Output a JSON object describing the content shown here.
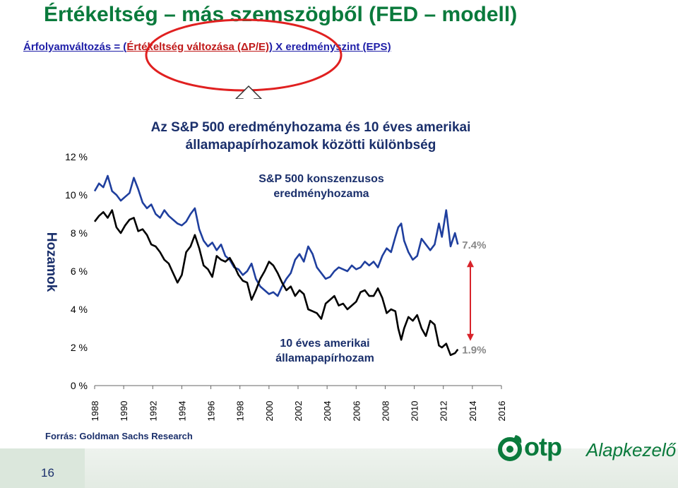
{
  "slide": {
    "title": "Értékeltség – más szemszögből (FED – modell)",
    "formula": {
      "part1": "Árfolyamváltozás = (",
      "part2": "Értékeltség változása (ΔP/E)",
      "part3": ") X  eredményszint (EPS)"
    },
    "source": "Forrás: Goldman Sachs Research",
    "page_number": "16",
    "logo": {
      "name": "otp",
      "sub": "Alapkezelő"
    }
  },
  "chart_data": {
    "type": "line",
    "title": "Az S&P 500 eredményhozama és 10 éves amerikai államapapírhozamok közötti különbség",
    "title_lines": [
      "Az S&P 500 eredményhozama és 10 éves amerikai",
      "államapapírhozamok  közötti különbség"
    ],
    "ylabel": "Hozamok",
    "ylim": [
      0,
      12
    ],
    "yticks": [
      "0 %",
      "2 %",
      "4 %",
      "6 %",
      "8 %",
      "10 %",
      "12 %"
    ],
    "yticks_values": [
      0,
      2,
      4,
      6,
      8,
      10,
      12
    ],
    "xlim": [
      1988,
      2016
    ],
    "xticks": [
      "1988",
      "1990",
      "1992",
      "1994",
      "1996",
      "1998",
      "2000",
      "2002",
      "2004",
      "2006",
      "2008",
      "2010",
      "2012",
      "2014",
      "2016"
    ],
    "grid": false,
    "series": [
      {
        "name": "S&P 500 konszenzusos eredményhozama",
        "name_lines": [
          "S&P 500 konszenzusos",
          "eredményhozama"
        ],
        "color": "#1f3f9e",
        "end_label": "7.4%",
        "x": [
          1988.0,
          1988.3,
          1988.6,
          1988.9,
          1989.2,
          1989.5,
          1989.8,
          1990.1,
          1990.4,
          1990.7,
          1991.0,
          1991.3,
          1991.6,
          1991.9,
          1992.2,
          1992.5,
          1992.8,
          1993.1,
          1993.4,
          1993.7,
          1994.0,
          1994.3,
          1994.6,
          1994.9,
          1995.2,
          1995.5,
          1995.8,
          1996.1,
          1996.4,
          1996.7,
          1997.0,
          1997.3,
          1997.6,
          1997.9,
          1998.2,
          1998.5,
          1998.8,
          1999.1,
          1999.4,
          1999.7,
          2000.0,
          2000.3,
          2000.6,
          2000.9,
          2001.2,
          2001.5,
          2001.8,
          2002.1,
          2002.4,
          2002.7,
          2003.0,
          2003.3,
          2003.6,
          2003.9,
          2004.2,
          2004.5,
          2004.8,
          2005.1,
          2005.4,
          2005.7,
          2006.0,
          2006.3,
          2006.6,
          2006.9,
          2007.2,
          2007.5,
          2007.8,
          2008.1,
          2008.4,
          2008.7,
          2008.9,
          2009.1,
          2009.3,
          2009.6,
          2009.9,
          2010.2,
          2010.5,
          2010.8,
          2011.1,
          2011.4,
          2011.7,
          2011.9,
          2012.2,
          2012.5,
          2012.8,
          2013.0
        ],
        "y": [
          10.2,
          10.6,
          10.4,
          11.0,
          10.2,
          10.0,
          9.7,
          9.9,
          10.1,
          10.9,
          10.3,
          9.6,
          9.3,
          9.5,
          9.0,
          8.8,
          9.2,
          8.9,
          8.7,
          8.5,
          8.4,
          8.6,
          9.0,
          9.3,
          8.2,
          7.6,
          7.3,
          7.5,
          7.1,
          7.4,
          6.8,
          6.6,
          6.2,
          6.1,
          5.8,
          6.0,
          6.4,
          5.6,
          5.2,
          5.0,
          4.8,
          4.9,
          4.7,
          5.2,
          5.6,
          5.9,
          6.6,
          6.9,
          6.5,
          7.3,
          6.9,
          6.2,
          5.9,
          5.6,
          5.7,
          6.0,
          6.2,
          6.1,
          6.0,
          6.3,
          6.1,
          6.2,
          6.5,
          6.3,
          6.5,
          6.2,
          6.8,
          7.2,
          7.0,
          7.8,
          8.3,
          8.5,
          7.6,
          7.0,
          6.6,
          6.8,
          7.7,
          7.4,
          7.1,
          7.4,
          8.5,
          7.8,
          9.2,
          7.3,
          8.0,
          7.4
        ]
      },
      {
        "name": "10 éves amerikai államapapírhozam",
        "name_lines": [
          "10 éves amerikai",
          "államapapírhozam"
        ],
        "color": "#000000",
        "end_label": "1.9%",
        "x": [
          1988.0,
          1988.3,
          1988.6,
          1988.9,
          1989.2,
          1989.5,
          1989.8,
          1990.1,
          1990.4,
          1990.7,
          1991.0,
          1991.3,
          1991.6,
          1991.9,
          1992.2,
          1992.5,
          1992.8,
          1993.1,
          1993.4,
          1993.7,
          1994.0,
          1994.3,
          1994.6,
          1994.9,
          1995.2,
          1995.5,
          1995.8,
          1996.1,
          1996.4,
          1996.7,
          1997.0,
          1997.3,
          1997.6,
          1997.9,
          1998.2,
          1998.5,
          1998.8,
          1999.1,
          1999.4,
          1999.7,
          2000.0,
          2000.3,
          2000.6,
          2000.9,
          2001.2,
          2001.5,
          2001.8,
          2002.1,
          2002.4,
          2002.7,
          2003.0,
          2003.3,
          2003.6,
          2003.9,
          2004.2,
          2004.5,
          2004.8,
          2005.1,
          2005.4,
          2005.7,
          2006.0,
          2006.3,
          2006.6,
          2006.9,
          2007.2,
          2007.5,
          2007.8,
          2008.1,
          2008.4,
          2008.7,
          2008.9,
          2009.1,
          2009.3,
          2009.6,
          2009.9,
          2010.2,
          2010.5,
          2010.8,
          2011.1,
          2011.4,
          2011.7,
          2011.9,
          2012.2,
          2012.5,
          2012.8,
          2013.0
        ],
        "y": [
          8.6,
          8.9,
          9.1,
          8.8,
          9.2,
          8.3,
          8.0,
          8.4,
          8.7,
          8.8,
          8.1,
          8.2,
          7.9,
          7.4,
          7.3,
          7.0,
          6.6,
          6.4,
          5.9,
          5.4,
          5.8,
          7.0,
          7.3,
          7.9,
          7.2,
          6.3,
          6.1,
          5.7,
          6.8,
          6.6,
          6.5,
          6.7,
          6.3,
          5.8,
          5.5,
          5.4,
          4.5,
          5.0,
          5.6,
          6.0,
          6.5,
          6.3,
          5.9,
          5.4,
          5.0,
          5.2,
          4.7,
          5.0,
          4.8,
          4.0,
          3.9,
          3.8,
          3.5,
          4.3,
          4.5,
          4.7,
          4.2,
          4.3,
          4.0,
          4.2,
          4.4,
          4.9,
          5.0,
          4.7,
          4.7,
          5.1,
          4.6,
          3.8,
          4.0,
          3.9,
          3.0,
          2.4,
          3.0,
          3.6,
          3.4,
          3.7,
          3.0,
          2.6,
          3.4,
          3.2,
          2.1,
          2.0,
          2.2,
          1.6,
          1.7,
          1.9
        ]
      }
    ],
    "annotation": "double-arrow between series end values"
  }
}
